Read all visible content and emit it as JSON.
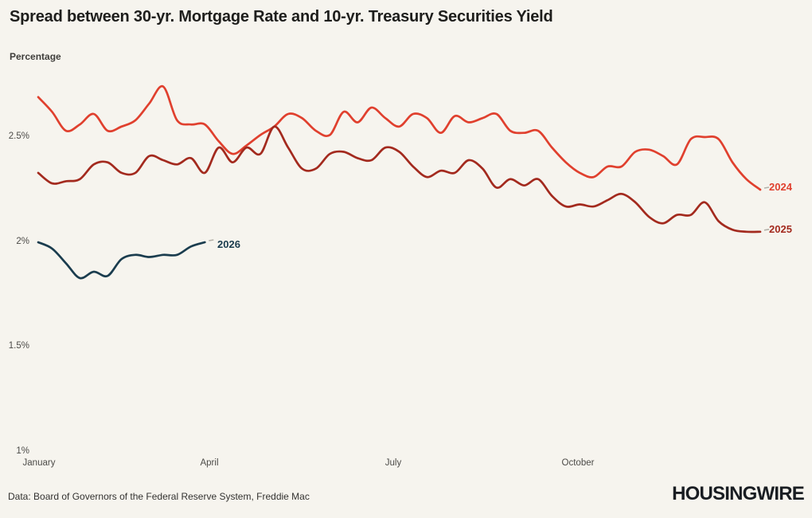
{
  "header": {
    "title": "Spread between 30-yr. Mortgage Rate and 10-yr. Treasury Securities Yield",
    "subtitle": "Percentage"
  },
  "footer": {
    "source": "Data: Board of Governors of the Federal Reserve System, Freddie Mac",
    "logo": "HOUSINGWIRE"
  },
  "colors": {
    "background": "#f6f4ee",
    "series_2024": "#e0402e",
    "series_2025": "#a32a1e",
    "series_2026": "#1a3c4e",
    "end_tick": "#b3b0a8",
    "axis_text": "#4c4b48"
  },
  "chart_data": {
    "type": "line",
    "title": "Spread between 30-yr. Mortgage Rate and 10-yr. Treasury Securities Yield",
    "ylabel": "Percentage",
    "x_unit": "week of year",
    "grid": false,
    "legend_position": "line-end-labels",
    "ylim": [
      1.0,
      2.78
    ],
    "y_ticks": [
      {
        "label": "2.5%",
        "value": 2.5
      },
      {
        "label": "2%",
        "value": 2.0
      },
      {
        "label": "1.5%",
        "value": 1.5
      },
      {
        "label": "1%",
        "value": 1.0
      }
    ],
    "x_ticks": [
      {
        "label": "January",
        "week": 0
      },
      {
        "label": "April",
        "week": 12.33
      },
      {
        "label": "July",
        "week": 25.57
      },
      {
        "label": "October",
        "week": 38.87
      }
    ],
    "series": [
      {
        "name": "2024",
        "color": "#e0402e",
        "start_week": 0,
        "values": [
          2.69,
          2.62,
          2.53,
          2.56,
          2.61,
          2.53,
          2.55,
          2.58,
          2.66,
          2.74,
          2.58,
          2.56,
          2.56,
          2.48,
          2.42,
          2.46,
          2.51,
          2.55,
          2.61,
          2.59,
          2.53,
          2.51,
          2.62,
          2.57,
          2.64,
          2.59,
          2.55,
          2.61,
          2.59,
          2.52,
          2.6,
          2.57,
          2.59,
          2.61,
          2.53,
          2.52,
          2.53,
          2.45,
          2.38,
          2.33,
          2.31,
          2.36,
          2.36,
          2.43,
          2.44,
          2.41,
          2.37,
          2.49,
          2.5,
          2.49,
          2.38,
          2.3,
          2.25
        ]
      },
      {
        "name": "2025",
        "color": "#a32a1e",
        "start_week": 0,
        "values": [
          2.33,
          2.28,
          2.29,
          2.3,
          2.37,
          2.38,
          2.33,
          2.33,
          2.41,
          2.39,
          2.37,
          2.4,
          2.33,
          2.45,
          2.38,
          2.45,
          2.42,
          2.55,
          2.45,
          2.35,
          2.35,
          2.42,
          2.43,
          2.4,
          2.39,
          2.45,
          2.43,
          2.36,
          2.31,
          2.34,
          2.33,
          2.39,
          2.35,
          2.26,
          2.3,
          2.27,
          2.3,
          2.22,
          2.17,
          2.18,
          2.17,
          2.2,
          2.23,
          2.19,
          2.12,
          2.09,
          2.13,
          2.13,
          2.19,
          2.1,
          2.06,
          2.05,
          2.05
        ]
      },
      {
        "name": "2026",
        "color": "#1a3c4e",
        "start_week": 0,
        "values": [
          2.0,
          1.97,
          1.9,
          1.83,
          1.86,
          1.84,
          1.92,
          1.94,
          1.93,
          1.94,
          1.94,
          1.98,
          2.0
        ]
      }
    ]
  }
}
